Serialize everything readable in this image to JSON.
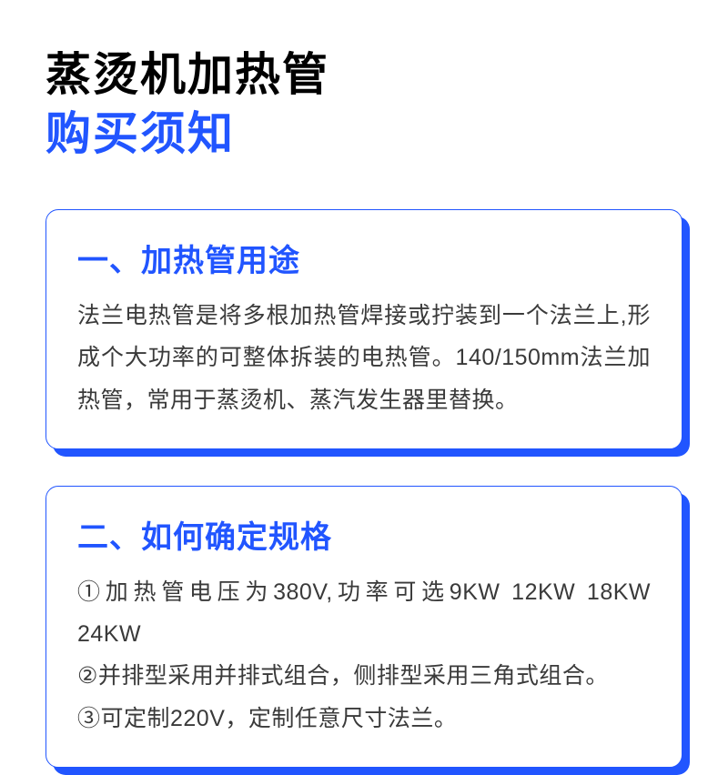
{
  "title": {
    "line1": "蒸烫机加热管",
    "line2": "购买须知"
  },
  "cards": [
    {
      "heading": "一、加热管用途",
      "body": "法兰电热管是将多根加热管焊接或拧装到一个法兰上,形成个大功率的可整体拆装的电热管。140/150mm法兰加热管，常用于蒸烫机、蒸汽发生器里替换。"
    },
    {
      "heading": "二、如何确定规格",
      "body": "①加热管电压为380V,功率可选9KW 12KW 18KW 24KW\n②并排型采用并排式组合，侧排型采用三角式组合。\n③可定制220V，定制任意尺寸法兰。"
    }
  ],
  "colors": {
    "accent": "#2155ff",
    "text_heading": "#000000",
    "text_body": "#3a3a3a",
    "background": "#ffffff"
  },
  "typography": {
    "title_fontsize": 50,
    "card_heading_fontsize": 34,
    "card_body_fontsize": 25
  }
}
